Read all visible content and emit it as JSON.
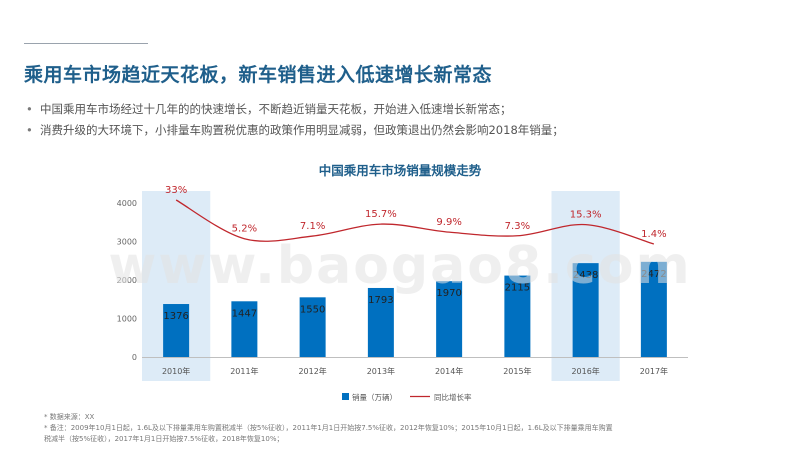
{
  "title": "乘用车市场趋近天花板，新车销售进入低速增长新常态",
  "bullets": [
    "中国乘用车市场经过十几年的的快速增长，不断趋近销量天花板，开始进入低速增长新常态；",
    "消费升级的大环境下，小排量车购置税优惠的政策作用明显减弱，但政策退出仍然会影响2018年销量；"
  ],
  "notes": [
    "* 数据来源：XX",
    "* 备注：2009年10月1日起，1.6L及以下排量乘用车购置税减半（按5%征收），2011年1月1日开始按7.5%征收，2012年恢复10%；2015年10月1日起，1.6L及以下排量乘用车购置",
    "税减半（按5%征收），2017年1月1日开始按7.5%征收，2018年恢复10%；"
  ],
  "watermark": "www.baogao8.com",
  "chart_data": {
    "type": "bar",
    "title": "中国乘用车市场销量规模走势",
    "categories": [
      "2010年",
      "2011年",
      "2012年",
      "2013年",
      "2014年",
      "2015年",
      "2016年",
      "2017年"
    ],
    "series": [
      {
        "name": "销量（万辆）",
        "type": "bar",
        "color": "#0070c0",
        "values": [
          1376,
          1447,
          1550,
          1793,
          1970,
          2115,
          2438,
          2472
        ],
        "labels": [
          "1376",
          "1447",
          "1550",
          "1793",
          "1970",
          "2115",
          "2438",
          "2472"
        ]
      },
      {
        "name": "同比增长率",
        "type": "line",
        "color": "#c0272d",
        "values": [
          33,
          5.2,
          7.1,
          15.7,
          9.9,
          7.3,
          15.3,
          1.4
        ],
        "labels": [
          "33%",
          "5.2%",
          "7.1%",
          "15.7%",
          "9.9%",
          "7.3%",
          "15.3%",
          "1.4%"
        ]
      }
    ],
    "y_ticks": [
      "0",
      "1000",
      "2000",
      "3000",
      "4000"
    ],
    "ylim": [
      0,
      4000
    ],
    "highlighted_categories": [
      "2010年",
      "2016年"
    ],
    "highlight_color": "#ddebf7",
    "grid": false,
    "legend_position": "bottom"
  }
}
